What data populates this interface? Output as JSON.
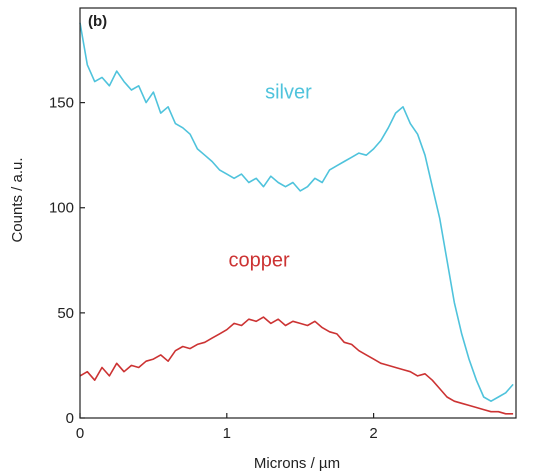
{
  "chart_data": {
    "type": "line",
    "panel_label": "(b)",
    "xlabel": "Microns / µm",
    "ylabel": "Counts / a.u.",
    "xlim": [
      0,
      2.97
    ],
    "ylim": [
      0,
      195
    ],
    "xticks": [
      0,
      1,
      2
    ],
    "yticks": [
      0,
      50,
      100,
      150
    ],
    "grid": false,
    "colors": {
      "silver": "#4fc3dc",
      "copper": "#cc3333",
      "axis": "#222222"
    },
    "series": [
      {
        "name": "silver",
        "color": "#4fc3dc",
        "label_pos": [
          1.42,
          152
        ],
        "x": [
          0.0,
          0.05,
          0.1,
          0.15,
          0.2,
          0.25,
          0.3,
          0.35,
          0.4,
          0.45,
          0.5,
          0.55,
          0.6,
          0.65,
          0.7,
          0.75,
          0.8,
          0.85,
          0.9,
          0.95,
          1.0,
          1.05,
          1.1,
          1.15,
          1.2,
          1.25,
          1.3,
          1.35,
          1.4,
          1.45,
          1.5,
          1.55,
          1.6,
          1.65,
          1.7,
          1.75,
          1.8,
          1.85,
          1.9,
          1.95,
          2.0,
          2.05,
          2.1,
          2.15,
          2.2,
          2.25,
          2.3,
          2.35,
          2.4,
          2.45,
          2.5,
          2.55,
          2.6,
          2.65,
          2.7,
          2.75,
          2.8,
          2.85,
          2.9,
          2.95
        ],
        "values": [
          188,
          168,
          160,
          162,
          158,
          165,
          160,
          156,
          158,
          150,
          155,
          145,
          148,
          140,
          138,
          135,
          128,
          125,
          122,
          118,
          116,
          114,
          116,
          112,
          114,
          110,
          115,
          112,
          110,
          112,
          108,
          110,
          114,
          112,
          118,
          120,
          122,
          124,
          126,
          125,
          128,
          132,
          138,
          145,
          148,
          140,
          135,
          125,
          110,
          95,
          75,
          55,
          40,
          28,
          18,
          10,
          8,
          10,
          12,
          16
        ]
      },
      {
        "name": "copper",
        "color": "#cc3333",
        "label_pos": [
          1.22,
          72
        ],
        "x": [
          0.0,
          0.05,
          0.1,
          0.15,
          0.2,
          0.25,
          0.3,
          0.35,
          0.4,
          0.45,
          0.5,
          0.55,
          0.6,
          0.65,
          0.7,
          0.75,
          0.8,
          0.85,
          0.9,
          0.95,
          1.0,
          1.05,
          1.1,
          1.15,
          1.2,
          1.25,
          1.3,
          1.35,
          1.4,
          1.45,
          1.5,
          1.55,
          1.6,
          1.65,
          1.7,
          1.75,
          1.8,
          1.85,
          1.9,
          1.95,
          2.0,
          2.05,
          2.1,
          2.15,
          2.2,
          2.25,
          2.3,
          2.35,
          2.4,
          2.45,
          2.5,
          2.55,
          2.6,
          2.65,
          2.7,
          2.75,
          2.8,
          2.85,
          2.9,
          2.95
        ],
        "values": [
          20,
          22,
          18,
          24,
          20,
          26,
          22,
          25,
          24,
          27,
          28,
          30,
          27,
          32,
          34,
          33,
          35,
          36,
          38,
          40,
          42,
          45,
          44,
          47,
          46,
          48,
          45,
          47,
          44,
          46,
          45,
          44,
          46,
          43,
          41,
          40,
          36,
          35,
          32,
          30,
          28,
          26,
          25,
          24,
          23,
          22,
          20,
          21,
          18,
          14,
          10,
          8,
          7,
          6,
          5,
          4,
          3,
          3,
          2,
          2
        ]
      }
    ]
  }
}
